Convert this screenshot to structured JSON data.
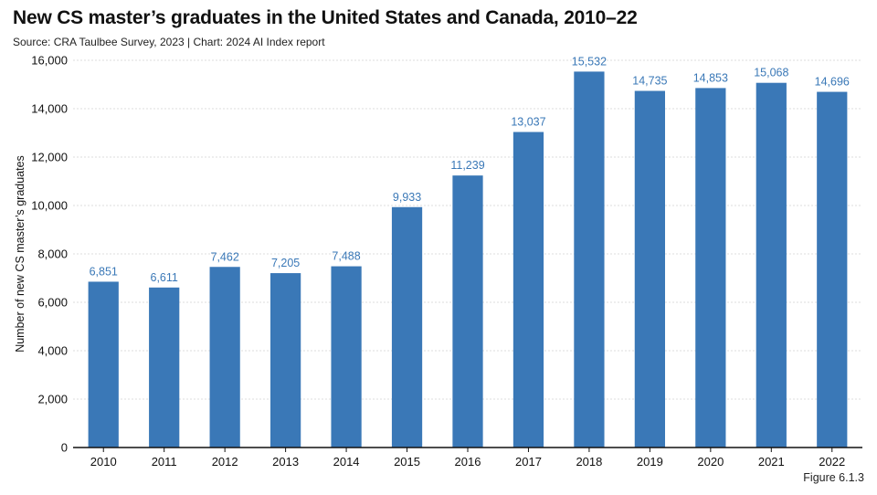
{
  "header": {
    "title": "New CS master’s graduates in the United States and Canada, 2010–22",
    "subtitle": "Source: CRA Taulbee Survey, 2023 | Chart: 2024 AI Index report"
  },
  "footer": {
    "figure_label": "Figure 6.1.3"
  },
  "colors": {
    "bar": "#3a78b7",
    "data_label": "#3a78b7",
    "grid": "#dcdcdc",
    "axis": "#111111"
  },
  "chart_data": {
    "type": "bar",
    "title": "New CS master’s graduates in the United States and Canada, 2010–22",
    "xlabel": "",
    "ylabel": "Number of new CS master’s graduates",
    "categories": [
      "2010",
      "2011",
      "2012",
      "2013",
      "2014",
      "2015",
      "2016",
      "2017",
      "2018",
      "2019",
      "2020",
      "2021",
      "2022"
    ],
    "values": [
      6851,
      6611,
      7462,
      7205,
      7488,
      9933,
      11239,
      13037,
      15532,
      14735,
      14853,
      15068,
      14696
    ],
    "value_labels": [
      "6,851",
      "6,611",
      "7,462",
      "7,205",
      "7,488",
      "9,933",
      "11,239",
      "13,037",
      "15,532",
      "14,735",
      "14,853",
      "15,068",
      "14,696"
    ],
    "ylim": [
      0,
      16000
    ],
    "yticks": [
      0,
      2000,
      4000,
      6000,
      8000,
      10000,
      12000,
      14000,
      16000
    ],
    "ytick_labels": [
      "0",
      "2,000",
      "4,000",
      "6,000",
      "8,000",
      "10,000",
      "12,000",
      "14,000",
      "16,000"
    ],
    "grid": true,
    "legend": "none"
  }
}
